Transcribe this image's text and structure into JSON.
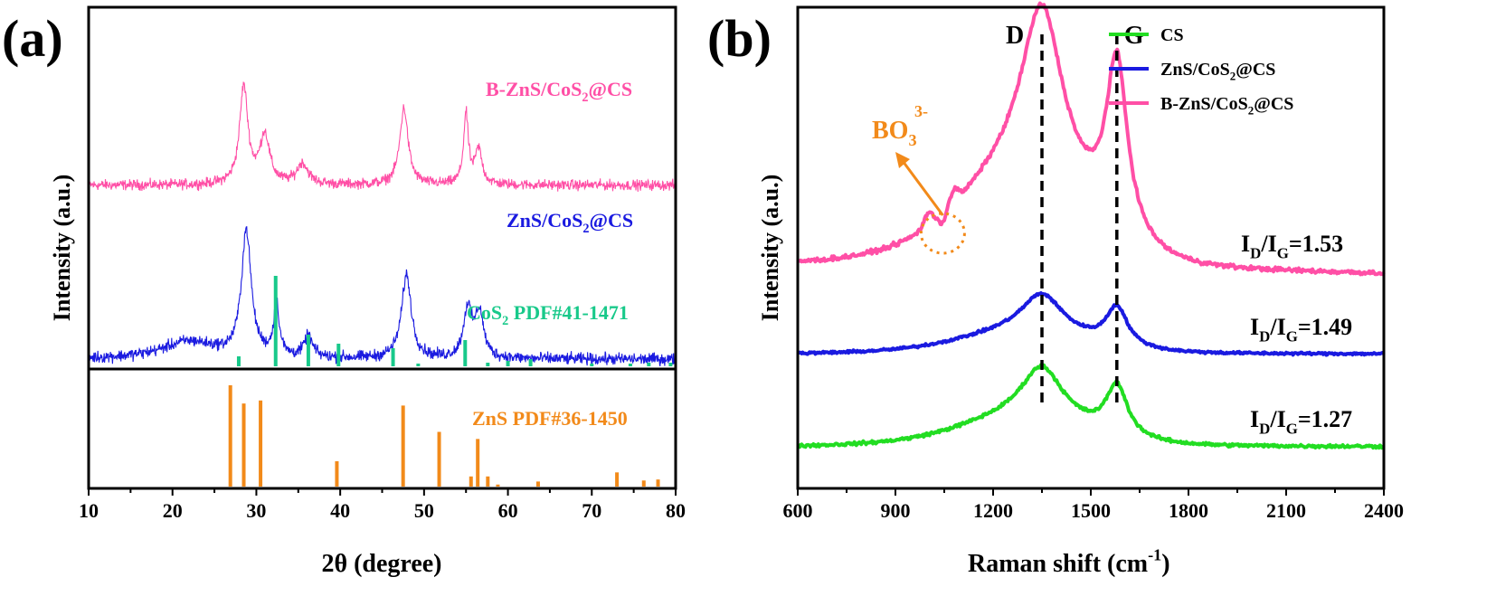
{
  "colors": {
    "pink": "#ff4fa6",
    "blue": "#1a1ae0",
    "green": "#22dd22",
    "teal": "#18c98a",
    "orange": "#f28a1a",
    "black": "#000000"
  },
  "chart_data": [
    {
      "panel_label": "(a)",
      "type": "line",
      "xlabel": "2θ (degree)",
      "ylabel": "Intensity (a.u.)",
      "xlim": [
        10,
        80
      ],
      "xticks": [
        "10",
        "20",
        "30",
        "40",
        "50",
        "60",
        "70",
        "80"
      ],
      "grid": false,
      "series": [
        {
          "name": "B-ZnS/CoS2@CS",
          "color": "#ff4fa6",
          "baseline": 0.7,
          "noise": 0.014,
          "peaks": [
            [
              28.5,
              0.28,
              0.6
            ],
            [
              31.0,
              0.14,
              0.7
            ],
            [
              35.5,
              0.06,
              0.8
            ],
            [
              47.6,
              0.22,
              0.6
            ],
            [
              55.0,
              0.2,
              0.35
            ],
            [
              56.5,
              0.1,
              0.5
            ]
          ]
        },
        {
          "name": "ZnS/CoS2@CS",
          "color": "#1a1ae0",
          "baseline": 0.2,
          "noise": 0.016,
          "peaks": [
            [
              22.0,
              0.05,
              4.0
            ],
            [
              28.8,
              0.36,
              0.7
            ],
            [
              32.4,
              0.15,
              0.4
            ],
            [
              36.2,
              0.06,
              0.6
            ],
            [
              47.9,
              0.24,
              0.7
            ],
            [
              55.2,
              0.14,
              0.6
            ],
            [
              56.6,
              0.13,
              0.6
            ]
          ]
        }
      ],
      "reference_patterns": [
        {
          "name": "CoS2 PDF#41-1471",
          "color": "#18c98a",
          "x": [
            27.9,
            32.3,
            36.2,
            39.8,
            46.3,
            49.3,
            54.9,
            57.6,
            60.0,
            62.7,
            70.0,
            74.6,
            76.8,
            79.4
          ],
          "y": [
            11,
            100,
            35,
            25,
            20,
            3,
            29,
            4,
            6,
            8,
            3,
            3,
            4,
            4
          ]
        },
        {
          "name": "ZnS PDF#36-1450",
          "color": "#f28a1a",
          "x": [
            26.9,
            28.5,
            30.5,
            39.6,
            47.5,
            51.8,
            55.6,
            56.4,
            57.6,
            58.8,
            63.6,
            73.0,
            76.2,
            77.9
          ],
          "y": [
            100,
            82,
            85,
            25,
            80,
            54,
            10,
            47,
            10,
            2,
            5,
            14,
            6,
            7
          ]
        }
      ]
    },
    {
      "panel_label": "(b)",
      "type": "line",
      "xlabel": "Raman shift (cm",
      "xlabel_sup": "-1",
      "xlabel_end": ")",
      "ylabel": "Intensity (a.u.)",
      "xlim": [
        600,
        2400
      ],
      "xticks": [
        "600",
        "900",
        "1200",
        "1500",
        "1800",
        "2100",
        "2400"
      ],
      "grid": false,
      "legend_position": "top-right",
      "legend": [
        "CS",
        "ZnS/CoS2@CS",
        "B-ZnS/CoS2@CS"
      ],
      "series": [
        {
          "name": "CS",
          "color": "#22dd22",
          "baseline": 0.0,
          "D": 0.4,
          "G": 0.39,
          "noise": 0.005,
          "ratio": "1.27"
        },
        {
          "name": "ZnS/CoS2@CS",
          "color": "#1a1ae0",
          "baseline": 0.5,
          "D": 0.3,
          "G": 0.3,
          "noise": 0.004,
          "ratio": "1.49"
        },
        {
          "name": "B-ZnS/CoS2@CS",
          "color": "#ff4fa6",
          "baseline": 0.98,
          "D": 1.31,
          "G": 1.34,
          "noise": 0.007,
          "ratio": "1.53"
        }
      ],
      "d_band": {
        "label": "D",
        "x": 1350
      },
      "g_band": {
        "label": "G",
        "x": 1580
      },
      "annotation": {
        "text": "BO",
        "sub": "3",
        "sup": "3-",
        "x": 1040
      }
    }
  ],
  "labels": {
    "ratio_prefix_I": "I",
    "ratio_sub_D": "D",
    "ratio_sub_G": "G"
  }
}
